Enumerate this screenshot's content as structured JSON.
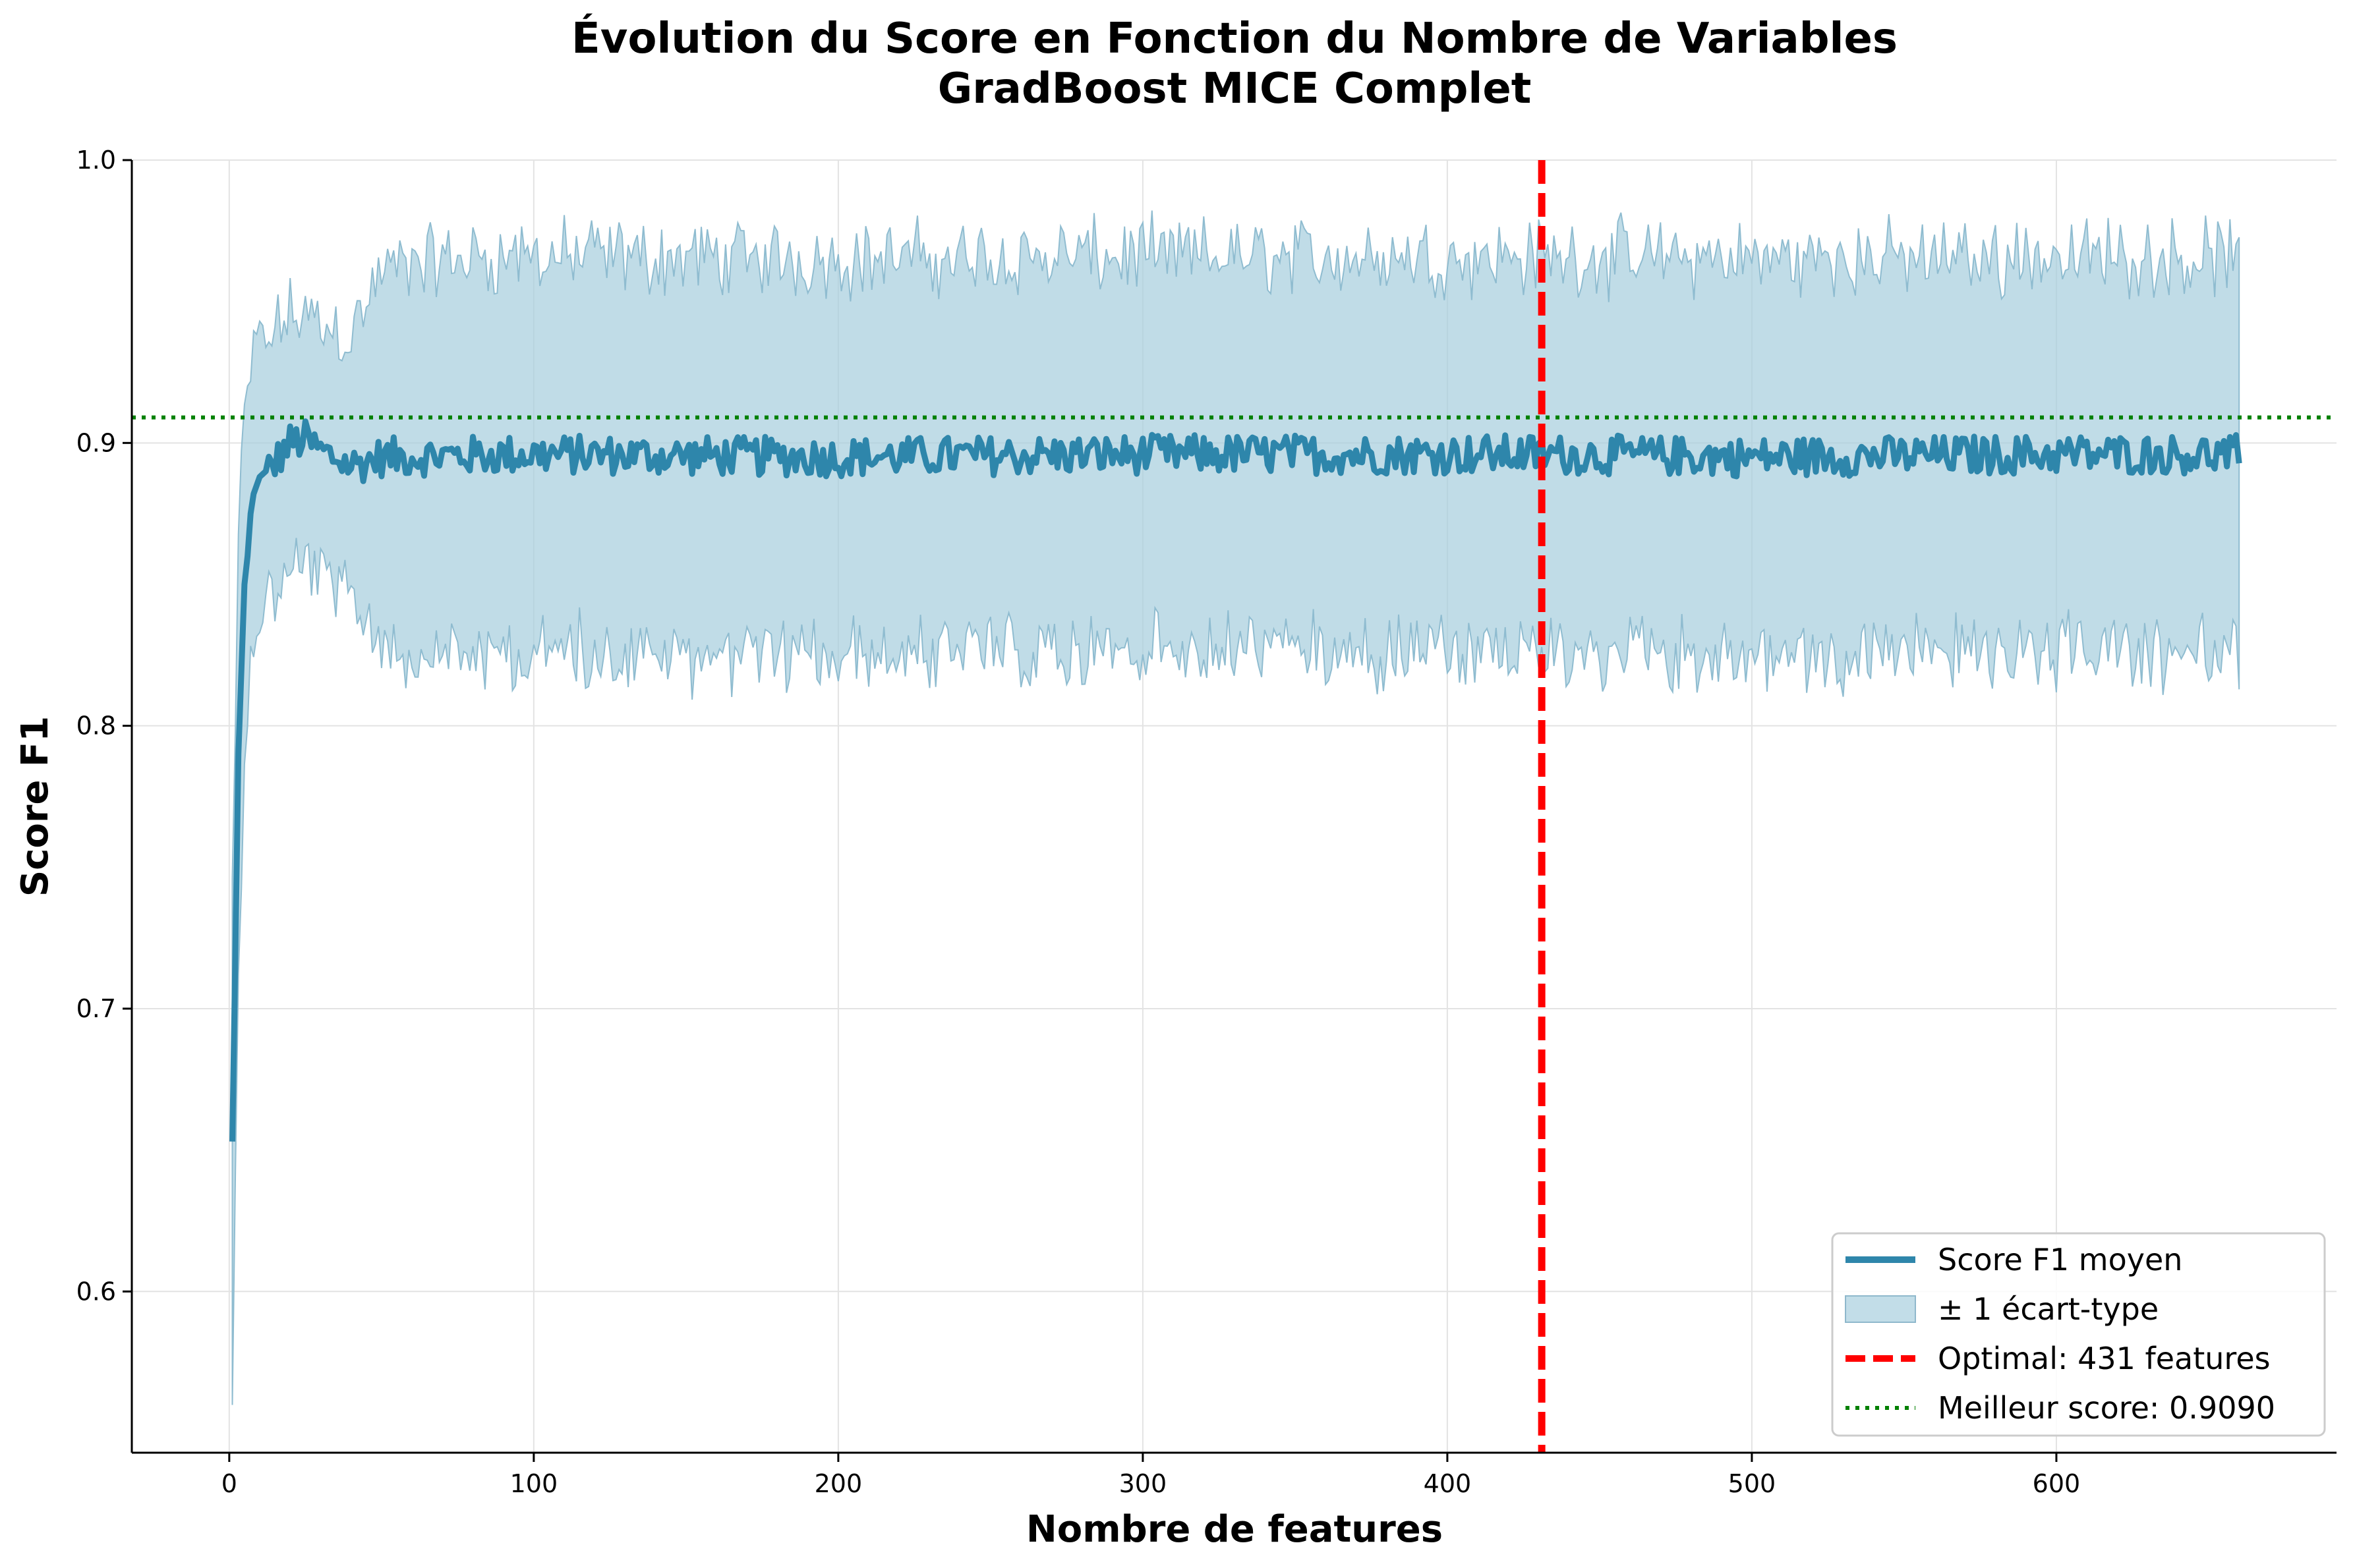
{
  "chart_data": {
    "type": "line",
    "title": "Évolution du Score en Fonction du Nombre de Variables",
    "subtitle": "GradBoost MICE Complet",
    "xlabel": "Nombre de features",
    "ylabel": "Score F1",
    "xlim": [
      -32,
      692
    ],
    "ylim": [
      0.543,
      1.0
    ],
    "xticks": [
      0,
      100,
      200,
      300,
      400,
      500,
      600
    ],
    "xtick_labels": [
      "0",
      "100",
      "200",
      "300",
      "400",
      "500",
      "600"
    ],
    "yticks": [
      0.6,
      0.7,
      0.8,
      0.9,
      1.0
    ],
    "ytick_labels": [
      "0.6",
      "0.7",
      "0.8",
      "0.9",
      "1.0"
    ],
    "grid": true,
    "legend_position": "bottom-right",
    "x_range": [
      1,
      660
    ],
    "mean_anchors": {
      "x": [
        1,
        2,
        3,
        4,
        5,
        6,
        7,
        8,
        10,
        12,
        15,
        20,
        25,
        30,
        40,
        50,
        100,
        200,
        300,
        400,
        431,
        500,
        600,
        660
      ],
      "y": [
        0.653,
        0.72,
        0.79,
        0.82,
        0.85,
        0.86,
        0.875,
        0.882,
        0.888,
        0.89,
        0.893,
        0.9,
        0.901,
        0.897,
        0.892,
        0.895,
        0.896,
        0.895,
        0.896,
        0.896,
        0.896,
        0.895,
        0.896,
        0.896
      ]
    },
    "std_anchors": {
      "x": [
        1,
        3,
        5,
        8,
        12,
        20,
        30,
        40,
        45,
        50,
        60,
        80,
        100,
        300,
        500,
        660
      ],
      "y": [
        0.09,
        0.075,
        0.06,
        0.05,
        0.047,
        0.045,
        0.045,
        0.047,
        0.055,
        0.065,
        0.068,
        0.07,
        0.07,
        0.07,
        0.07,
        0.07
      ]
    },
    "series": [
      {
        "name": "Score F1 moyen",
        "style": "line",
        "color": "#2e86ab"
      },
      {
        "name": "± 1 écart-type",
        "style": "band",
        "color": "#a8cede"
      }
    ],
    "annotations": {
      "optimal_x": 431,
      "optimal_label": "Optimal: 431 features",
      "optimal_color": "#ff0000",
      "best_score": 0.909,
      "best_label": "Meilleur score: 0.9090",
      "best_color": "#008000"
    }
  }
}
